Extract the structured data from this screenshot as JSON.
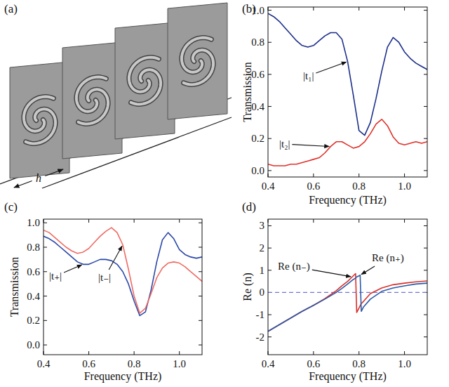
{
  "diagram": {
    "label": "(a)",
    "spacing_label": "h",
    "layers": 4
  },
  "chart_data": [
    {
      "type": "line",
      "title": "(b)",
      "x_label": "Frequency (THz)",
      "y_label": "Transmission",
      "x": [
        0.4,
        0.425,
        0.45,
        0.475,
        0.5,
        0.525,
        0.55,
        0.575,
        0.6,
        0.625,
        0.65,
        0.675,
        0.7,
        0.725,
        0.75,
        0.775,
        0.8,
        0.825,
        0.85,
        0.875,
        0.9,
        0.925,
        0.95,
        0.975,
        1.0,
        1.025,
        1.05,
        1.075,
        1.1
      ],
      "xlim": [
        0.4,
        1.1
      ],
      "xticks": [
        0.4,
        0.6,
        0.8,
        {
          "value": 1.0,
          "label": "1.0"
        }
      ],
      "ylim": [
        -0.04,
        1.02
      ],
      "yticks": [
        {
          "value": 0,
          "label": "0.0"
        },
        0.2,
        0.4,
        0.6,
        0.8,
        {
          "value": 1,
          "label": "1.0"
        }
      ],
      "series": [
        {
          "name": "|t₁|",
          "color": "#1c2f8a",
          "values": [
            0.98,
            0.96,
            0.93,
            0.89,
            0.85,
            0.81,
            0.78,
            0.77,
            0.78,
            0.81,
            0.84,
            0.86,
            0.86,
            0.82,
            0.68,
            0.47,
            0.25,
            0.22,
            0.3,
            0.45,
            0.62,
            0.77,
            0.83,
            0.8,
            0.74,
            0.7,
            0.67,
            0.65,
            0.63
          ]
        },
        {
          "name": "|t₂|",
          "color": "#e0302a",
          "values": [
            0.04,
            0.03,
            0.03,
            0.03,
            0.04,
            0.04,
            0.05,
            0.06,
            0.07,
            0.08,
            0.11,
            0.15,
            0.18,
            0.18,
            0.16,
            0.14,
            0.15,
            0.18,
            0.23,
            0.29,
            0.32,
            0.28,
            0.21,
            0.17,
            0.16,
            0.17,
            0.18,
            0.17,
            0.18
          ]
        }
      ]
    },
    {
      "type": "line",
      "title": "(c)",
      "x_label": "Frequency (THz)",
      "y_label": "Transmission",
      "x": [
        0.4,
        0.425,
        0.45,
        0.475,
        0.5,
        0.525,
        0.55,
        0.575,
        0.6,
        0.625,
        0.65,
        0.675,
        0.7,
        0.725,
        0.75,
        0.775,
        0.8,
        0.825,
        0.85,
        0.875,
        0.9,
        0.925,
        0.95,
        0.975,
        1.0,
        1.025,
        1.05,
        1.075,
        1.1
      ],
      "xlim": [
        0.4,
        1.1
      ],
      "xticks": [
        0.4,
        0.6,
        0.8,
        {
          "value": 1.0,
          "label": "1.0"
        }
      ],
      "ylim": [
        -0.08,
        1.03
      ],
      "yticks": [
        {
          "value": 0,
          "label": "0.0"
        },
        0.2,
        0.4,
        0.6,
        0.8,
        {
          "value": 1,
          "label": "1.0"
        }
      ],
      "series": [
        {
          "name": "|t₊|",
          "color": "#2a48a8",
          "values": [
            0.89,
            0.87,
            0.84,
            0.8,
            0.76,
            0.72,
            0.68,
            0.66,
            0.66,
            0.68,
            0.7,
            0.7,
            0.69,
            0.66,
            0.6,
            0.5,
            0.36,
            0.24,
            0.27,
            0.45,
            0.68,
            0.86,
            0.92,
            0.87,
            0.78,
            0.74,
            0.72,
            0.71,
            0.72
          ]
        },
        {
          "name": "|t₋|",
          "color": "#ef6b64",
          "values": [
            0.94,
            0.92,
            0.88,
            0.84,
            0.8,
            0.77,
            0.75,
            0.76,
            0.79,
            0.84,
            0.89,
            0.93,
            0.96,
            0.92,
            0.82,
            0.62,
            0.4,
            0.26,
            0.3,
            0.42,
            0.55,
            0.63,
            0.67,
            0.68,
            0.67,
            0.64,
            0.6,
            0.56,
            0.52
          ]
        }
      ]
    },
    {
      "type": "line",
      "title": "(d)",
      "x_label": "Frequency (THz)",
      "y_label": "Re (n)",
      "x": [
        0.4,
        0.45,
        0.5,
        0.55,
        0.6,
        0.65,
        0.7,
        0.725,
        0.75,
        0.77,
        0.785,
        0.79,
        0.8,
        0.805,
        0.81,
        0.82,
        0.85,
        0.9,
        0.95,
        1.0,
        1.05,
        1.1
      ],
      "xlim": [
        0.4,
        1.1
      ],
      "xticks": [
        0.4,
        0.6,
        0.8,
        {
          "value": 1.0,
          "label": "1.0"
        }
      ],
      "ylim": [
        -2.8,
        3.3
      ],
      "yticks": [
        -2,
        -1,
        0,
        1,
        2,
        3
      ],
      "reference_lines": [
        {
          "y": 0,
          "color": "#7272dc",
          "line_style": "dashed"
        }
      ],
      "series": [
        {
          "name": "Re (n₋)",
          "color": "#d8302a",
          "values": [
            -1.75,
            -1.45,
            -1.15,
            -0.85,
            -0.58,
            -0.28,
            0.08,
            0.3,
            0.5,
            0.7,
            0.85,
            -0.9,
            -0.7,
            -0.6,
            -0.5,
            -0.4,
            -0.05,
            0.2,
            0.35,
            0.42,
            0.48,
            0.52
          ]
        },
        {
          "name": "Re (n₊)",
          "color": "#2a5aa8",
          "values": [
            -1.75,
            -1.45,
            -1.15,
            -0.85,
            -0.58,
            -0.3,
            0.0,
            0.18,
            0.38,
            0.55,
            0.65,
            0.7,
            0.75,
            0.78,
            -0.85,
            -0.65,
            -0.3,
            0.05,
            0.2,
            0.3,
            0.38,
            0.42
          ]
        }
      ]
    }
  ]
}
